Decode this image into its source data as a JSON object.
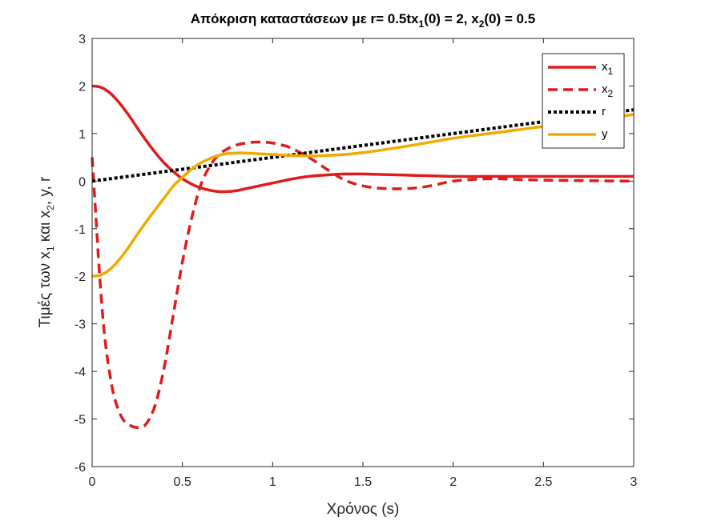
{
  "chart_data": {
    "type": "line",
    "title": {
      "prefix": "Απόκριση καταστάσεων με r= 0.5tx",
      "sub1": "1",
      "mid": "(0) = 2, x",
      "sub2": "2",
      "suffix": "(0) = 0.5"
    },
    "xlabel": "Χρόνος (s)",
    "ylabel": {
      "prefix": "Τιμές των x",
      "sub1": "1",
      "mid": " και x",
      "sub2": "2",
      "suffix": ", y, r"
    },
    "xlim": [
      0,
      3
    ],
    "ylim": [
      -6,
      3
    ],
    "xticks": [
      0,
      0.5,
      1,
      1.5,
      2,
      2.5,
      3
    ],
    "xtick_labels": [
      "0",
      "0.5",
      "1",
      "1.5",
      "2",
      "2.5",
      "3"
    ],
    "yticks": [
      -6,
      -5,
      -4,
      -3,
      -2,
      -1,
      0,
      1,
      2,
      3
    ],
    "ytick_labels": [
      "-6",
      "-5",
      "-4",
      "-3",
      "-2",
      "-1",
      "0",
      "1",
      "2",
      "3"
    ],
    "grid": false,
    "legend_position": "top-right",
    "series": [
      {
        "name": "x",
        "name_sub": "1",
        "color": "#e01b1b",
        "style": "solid",
        "x": [
          0,
          0.05,
          0.1,
          0.15,
          0.2,
          0.25,
          0.3,
          0.35,
          0.4,
          0.45,
          0.5,
          0.55,
          0.6,
          0.65,
          0.7,
          0.75,
          0.8,
          0.85,
          0.9,
          1.0,
          1.1,
          1.2,
          1.3,
          1.4,
          1.5,
          1.6,
          1.8,
          2.0,
          2.2,
          2.5,
          3.0
        ],
        "y": [
          2.0,
          1.97,
          1.85,
          1.65,
          1.4,
          1.12,
          0.85,
          0.6,
          0.38,
          0.2,
          0.05,
          -0.06,
          -0.14,
          -0.19,
          -0.22,
          -0.22,
          -0.2,
          -0.16,
          -0.12,
          -0.04,
          0.04,
          0.1,
          0.13,
          0.15,
          0.15,
          0.14,
          0.12,
          0.1,
          0.1,
          0.1,
          0.1
        ]
      },
      {
        "name": "x",
        "name_sub": "2",
        "color": "#e01b1b",
        "style": "dashed",
        "x": [
          0,
          0.02,
          0.04,
          0.06,
          0.08,
          0.1,
          0.12,
          0.15,
          0.18,
          0.22,
          0.26,
          0.3,
          0.35,
          0.4,
          0.45,
          0.5,
          0.55,
          0.6,
          0.65,
          0.7,
          0.75,
          0.8,
          0.85,
          0.9,
          0.95,
          1.0,
          1.05,
          1.1,
          1.2,
          1.3,
          1.4,
          1.5,
          1.6,
          1.7,
          1.8,
          1.9,
          2.0,
          2.2,
          2.5,
          3.0
        ],
        "y": [
          0.5,
          -0.7,
          -1.9,
          -2.9,
          -3.6,
          -4.1,
          -4.5,
          -4.85,
          -5.05,
          -5.15,
          -5.18,
          -5.1,
          -4.7,
          -3.9,
          -2.8,
          -1.7,
          -0.8,
          -0.1,
          0.3,
          0.55,
          0.68,
          0.76,
          0.8,
          0.82,
          0.82,
          0.8,
          0.76,
          0.7,
          0.5,
          0.25,
          0.02,
          -0.1,
          -0.15,
          -0.16,
          -0.14,
          -0.08,
          0.0,
          0.05,
          0.02,
          0.0
        ]
      },
      {
        "name": "r",
        "name_sub": "",
        "color": "#000000",
        "style": "dotted",
        "x": [
          0,
          3
        ],
        "y": [
          0,
          1.5
        ]
      },
      {
        "name": "y",
        "name_sub": "",
        "color": "#f2a900",
        "style": "solid",
        "x": [
          0,
          0.05,
          0.1,
          0.15,
          0.2,
          0.25,
          0.3,
          0.35,
          0.4,
          0.45,
          0.5,
          0.55,
          0.6,
          0.65,
          0.7,
          0.75,
          0.8,
          0.85,
          0.9,
          1.0,
          1.1,
          1.2,
          1.3,
          1.4,
          1.5,
          1.6,
          1.8,
          2.0,
          2.2,
          2.5,
          2.8,
          3.0
        ],
        "y": [
          -2.0,
          -1.97,
          -1.85,
          -1.65,
          -1.4,
          -1.12,
          -0.85,
          -0.6,
          -0.35,
          -0.1,
          0.08,
          0.25,
          0.38,
          0.47,
          0.54,
          0.58,
          0.59,
          0.59,
          0.58,
          0.56,
          0.54,
          0.53,
          0.54,
          0.56,
          0.6,
          0.65,
          0.77,
          0.9,
          1.0,
          1.15,
          1.3,
          1.4
        ]
      }
    ]
  }
}
